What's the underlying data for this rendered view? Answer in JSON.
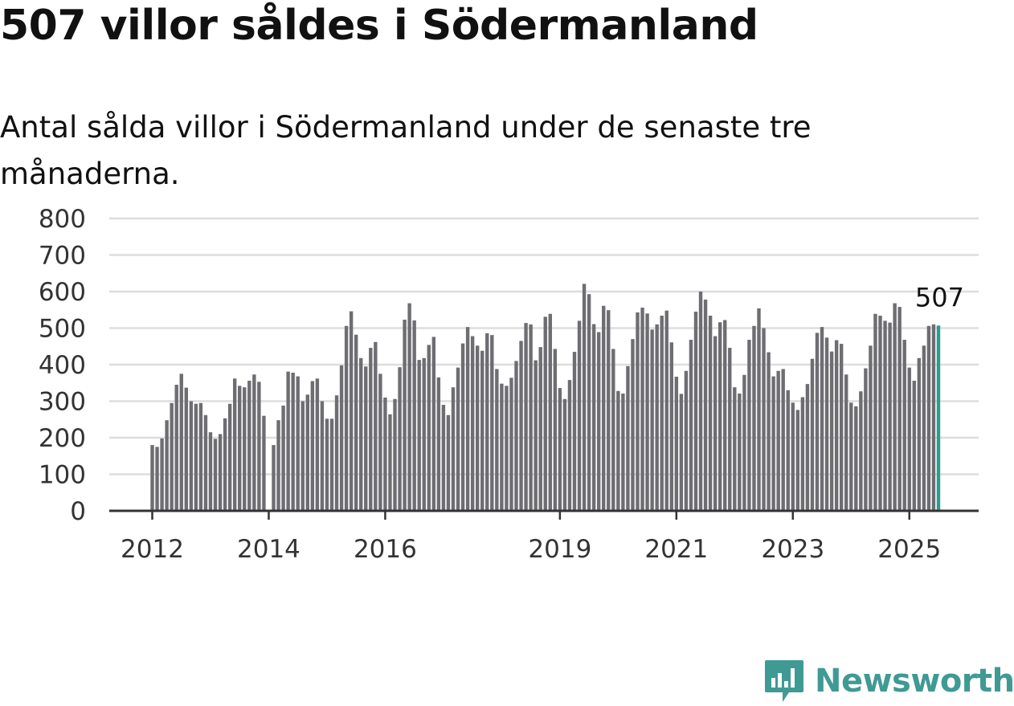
{
  "title": "507 villor såldes i Södermanland",
  "subtitle": "Antal sålda villor i Södermanland under de senaste tre månaderna.",
  "brand": {
    "name": "Newsworthy",
    "color": "#3f9a94"
  },
  "colors": {
    "bar": "#6e6d72",
    "highlight": "#2a9d8f",
    "grid": "#dddddd",
    "axis": "#333333"
  },
  "chart_data": {
    "type": "bar",
    "title": "507 villor såldes i Södermanland",
    "subtitle": "Antal sålda villor i Södermanland under de senaste tre månaderna.",
    "xlabel": "",
    "ylabel": "",
    "ylim": [
      0,
      800
    ],
    "yticks": [
      0,
      100,
      200,
      300,
      400,
      500,
      600,
      700,
      800
    ],
    "grid": true,
    "xtick_labels": [
      {
        "label": "2012",
        "index": 0
      },
      {
        "label": "2014",
        "index": 24
      },
      {
        "label": "2016",
        "index": 48
      },
      {
        "label": "2019",
        "index": 84
      },
      {
        "label": "2021",
        "index": 108
      },
      {
        "label": "2023",
        "index": 132
      },
      {
        "label": "2025",
        "index": 156
      }
    ],
    "x_start": "2012-01",
    "x_end": "2025-06",
    "highlight_last": true,
    "last_value_label": "507",
    "values": [
      180,
      175,
      198,
      248,
      295,
      345,
      375,
      337,
      300,
      293,
      295,
      262,
      215,
      197,
      210,
      253,
      293,
      362,
      342,
      338,
      356,
      373,
      353,
      260,
      null,
      180,
      248,
      288,
      381,
      378,
      368,
      300,
      318,
      355,
      362,
      300,
      252,
      252,
      316,
      398,
      506,
      546,
      482,
      418,
      395,
      446,
      462,
      375,
      310,
      264,
      306,
      393,
      523,
      568,
      521,
      413,
      418,
      454,
      476,
      365,
      290,
      262,
      338,
      392,
      458,
      503,
      478,
      452,
      438,
      486,
      481,
      388,
      348,
      342,
      364,
      410,
      465,
      514,
      510,
      412,
      448,
      531,
      539,
      443,
      336,
      306,
      358,
      435,
      520,
      621,
      593,
      511,
      489,
      561,
      549,
      443,
      328,
      321,
      396,
      470,
      543,
      556,
      540,
      496,
      510,
      534,
      548,
      461,
      367,
      320,
      383,
      468,
      545,
      600,
      578,
      534,
      478,
      516,
      522,
      446,
      338,
      321,
      372,
      468,
      506,
      554,
      500,
      434,
      368,
      383,
      388,
      330,
      296,
      276,
      311,
      347,
      416,
      487,
      503,
      474,
      436,
      467,
      457,
      373,
      296,
      286,
      327,
      390,
      452,
      539,
      534,
      520,
      515,
      568,
      558,
      468,
      392,
      356,
      418,
      452,
      506,
      510,
      507
    ]
  }
}
